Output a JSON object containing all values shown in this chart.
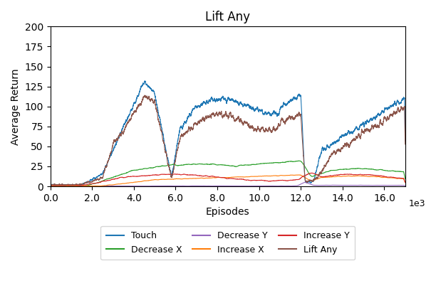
{
  "title": "Lift Any",
  "xlabel": "Episodes",
  "ylabel": "Average Return",
  "xlim": [
    0,
    17000
  ],
  "ylim": [
    0,
    200
  ],
  "series": {
    "Touch": {
      "color": "#1f77b4",
      "lw": 0.8
    },
    "Decrease X": {
      "color": "#2ca02c",
      "lw": 0.8
    },
    "Decrease Y": {
      "color": "#9467bd",
      "lw": 0.8
    },
    "Increase X": {
      "color": "#ff7f0e",
      "lw": 0.8
    },
    "Increase Y": {
      "color": "#d62728",
      "lw": 0.8
    },
    "Lift Any": {
      "color": "#8c564b",
      "lw": 0.8
    }
  },
  "legend_order": [
    "Touch",
    "Decrease X",
    "Decrease Y",
    "Increase X",
    "Increase Y",
    "Lift Any"
  ],
  "legend_ncol": 3,
  "seed": 0
}
